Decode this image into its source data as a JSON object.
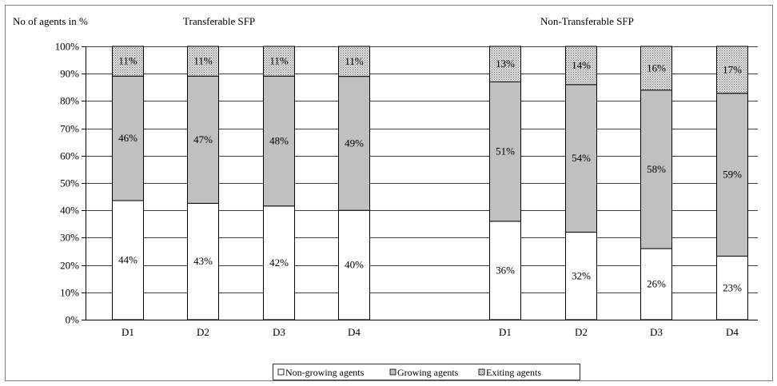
{
  "chart_data": {
    "type": "bar",
    "stacked": true,
    "percent_stacked": true,
    "ylabel": "No of agents in %",
    "yticks": [
      "0%",
      "10%",
      "20%",
      "30%",
      "40%",
      "50%",
      "60%",
      "70%",
      "80%",
      "90%",
      "100%"
    ],
    "ylim": [
      0,
      100
    ],
    "grid": true,
    "legend_position": "bottom",
    "colors": {
      "Non-growing agents": "#ffffff",
      "Growing agents": "#c0c0c0",
      "Exiting agents": "#d9d9d9"
    },
    "groups": [
      {
        "title": "Transferable SFP",
        "categories": [
          "D1",
          "D2",
          "D3",
          "D4"
        ],
        "series": [
          {
            "name": "Non-growing agents",
            "values": [
              44,
              43,
              42,
              40
            ],
            "labels": [
              "44%",
              "43%",
              "42%",
              "40%"
            ]
          },
          {
            "name": "Growing agents",
            "values": [
              46,
              47,
              48,
              49
            ],
            "labels": [
              "46%",
              "47%",
              "48%",
              "49%"
            ]
          },
          {
            "name": "Exiting agents",
            "values": [
              11,
              11,
              11,
              11
            ],
            "labels": [
              "11%",
              "11%",
              "11%",
              "11%"
            ]
          }
        ]
      },
      {
        "title": "Non-Transferable SFP",
        "categories": [
          "D1",
          "D2",
          "D3",
          "D4"
        ],
        "series": [
          {
            "name": "Non-growing agents",
            "values": [
              36,
              32,
              26,
              23
            ],
            "labels": [
              "36%",
              "32%",
              "26%",
              "23%"
            ]
          },
          {
            "name": "Growing agents",
            "values": [
              51,
              54,
              58,
              59
            ],
            "labels": [
              "51%",
              "54%",
              "58%",
              "59%"
            ]
          },
          {
            "name": "Exiting agents",
            "values": [
              13,
              14,
              16,
              17
            ],
            "labels": [
              "13%",
              "14%",
              "16%",
              "17%"
            ]
          }
        ]
      }
    ],
    "legend": [
      "Non-growing agents",
      "Growing agents",
      "Exiting agents"
    ]
  }
}
